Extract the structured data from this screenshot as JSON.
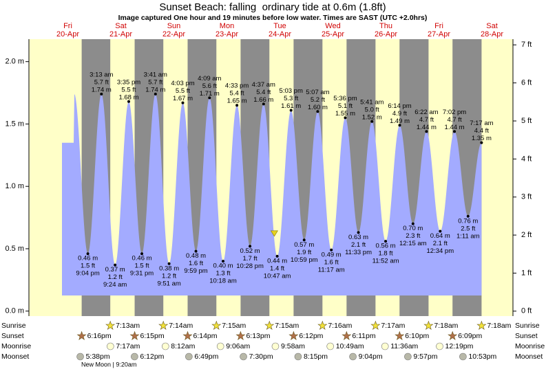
{
  "chart_data": {
    "type": "tide",
    "title": "Sunset Beach: falling  ordinary tide at 0.6m (1.8ft)",
    "subtitle": "Image captured One hour and 19 minutes before low water. Times are SAST (UTC +2.0hrs)",
    "ylim": [
      -0.04,
      2.18
    ],
    "yticks": [
      {
        "value": 0,
        "label": "0.0 m"
      },
      {
        "value": 0.5,
        "label": "0.5 m"
      },
      {
        "value": 1,
        "label": "1.0 m"
      },
      {
        "value": 1.5,
        "label": "1.5 m"
      },
      {
        "value": 2,
        "label": "2.0 m"
      }
    ],
    "y2lim": [
      -0.13,
      7.15
    ],
    "y2ticks": [
      {
        "value": 0,
        "label": "0 ft"
      },
      {
        "value": 1,
        "label": "1 ft"
      },
      {
        "value": 2,
        "label": "2 ft"
      },
      {
        "value": 3,
        "label": "3 ft"
      },
      {
        "value": 4,
        "label": "4 ft"
      },
      {
        "value": 5,
        "label": "5 ft"
      },
      {
        "value": 6,
        "label": "6 ft"
      },
      {
        "value": 7,
        "label": "7 ft"
      }
    ],
    "color": "#a3abff",
    "day_color": "#ffffc8",
    "night_color": "#8c8c8c",
    "row_labels": {
      "sunrise": "Sunrise",
      "sunset": "Sunset",
      "moonrise": "Moonrise",
      "moonset": "Moonset"
    },
    "moon_phase": "New Moon | 9:20am",
    "days": [
      {
        "weekday": "Fri",
        "date": "20-Apr",
        "sunrise": null,
        "sunset": "6:16pm",
        "moonrise": null,
        "moonset": "5:38pm",
        "tides": {
          "times": [
            "9:04 pm"
          ],
          "values": [
            0.46
          ],
          "value_labels": [
            "0.46 m"
          ],
          "ft_labels": [
            "1.5 ft"
          ]
        }
      },
      {
        "weekday": "Sat",
        "date": "21-Apr",
        "sunrise": "7:13am",
        "sunset": "6:15pm",
        "moonrise": "7:17am",
        "moonset": "6:12pm",
        "tides": {
          "times": [
            "3:13 am",
            "9:24 am",
            "3:35 pm",
            "9:31 pm"
          ],
          "values": [
            1.74,
            0.37,
            1.68,
            0.46
          ],
          "value_labels": [
            "1.74 m",
            "0.37 m",
            "1.68 m",
            "0.46 m"
          ],
          "ft_labels": [
            "5.7 ft",
            "1.2 ft",
            "5.5 ft",
            "1.5 ft"
          ]
        }
      },
      {
        "weekday": "Sun",
        "date": "22-Apr",
        "sunrise": "7:14am",
        "sunset": "6:14pm",
        "moonrise": "8:12am",
        "moonset": "6:49pm",
        "tides": {
          "times": [
            "3:41 am",
            "9:51 am",
            "4:03 pm",
            "9:59 pm"
          ],
          "values": [
            1.74,
            0.38,
            1.67,
            0.48
          ],
          "value_labels": [
            "1.74 m",
            "0.38 m",
            "1.67 m",
            "0.48 m"
          ],
          "ft_labels": [
            "5.7 ft",
            "1.2 ft",
            "5.5 ft",
            "1.6 ft"
          ]
        }
      },
      {
        "weekday": "Mon",
        "date": "23-Apr",
        "sunrise": "7:15am",
        "sunset": "6:13pm",
        "moonrise": "9:06am",
        "moonset": "7:30pm",
        "tides": {
          "times": [
            "4:09 am",
            "10:18 am",
            "4:33 pm",
            "10:28 pm"
          ],
          "values": [
            1.71,
            0.4,
            1.65,
            0.52
          ],
          "value_labels": [
            "1.71 m",
            "0.40 m",
            "1.65 m",
            "0.52 m"
          ],
          "ft_labels": [
            "5.6 ft",
            "1.3 ft",
            "5.4 ft",
            "1.7 ft"
          ]
        }
      },
      {
        "weekday": "Tue",
        "date": "24-Apr",
        "sunrise": "7:15am",
        "sunset": "6:12pm",
        "moonrise": "9:58am",
        "moonset": "8:15pm",
        "marker": {
          "hour": 9.47,
          "value": 0.6
        },
        "tides": {
          "times": [
            "4:37 am",
            "10:47 am",
            "5:03 pm",
            "10:59 pm"
          ],
          "values": [
            1.66,
            0.44,
            1.61,
            0.57
          ],
          "value_labels": [
            "1.66 m",
            "0.44 m",
            "1.61 m",
            "0.57 m"
          ],
          "ft_labels": [
            "5.4 ft",
            "1.4 ft",
            "5.3 ft",
            "1.9 ft"
          ]
        }
      },
      {
        "weekday": "Wed",
        "date": "25-Apr",
        "sunrise": "7:16am",
        "sunset": "6:11pm",
        "moonrise": "10:49am",
        "moonset": "9:04pm",
        "tides": {
          "times": [
            "5:07 am",
            "11:17 am",
            "5:36 pm",
            "11:33 pm"
          ],
          "values": [
            1.6,
            0.49,
            1.55,
            0.63
          ],
          "value_labels": [
            "1.60 m",
            "0.49 m",
            "1.55 m",
            "0.63 m"
          ],
          "ft_labels": [
            "5.2 ft",
            "1.6 ft",
            "5.1 ft",
            "2.1 ft"
          ]
        }
      },
      {
        "weekday": "Thu",
        "date": "26-Apr",
        "sunrise": "7:17am",
        "sunset": "6:10pm",
        "moonrise": "11:36am",
        "moonset": "9:57pm",
        "tides": {
          "times": [
            "5:41 am",
            "11:52 am",
            "6:14 pm"
          ],
          "values": [
            1.52,
            0.56,
            1.49
          ],
          "value_labels": [
            "1.52 m",
            "0.56 m",
            "1.49 m"
          ],
          "ft_labels": [
            "5.0 ft",
            "1.8 ft",
            "4.9 ft"
          ]
        }
      },
      {
        "weekday": "Fri",
        "date": "27-Apr",
        "sunrise": "7:18am",
        "sunset": "6:09pm",
        "moonrise": "12:19pm",
        "moonset": "10:53pm",
        "tides": {
          "times": [
            "12:15 am",
            "6:22 am",
            "12:34 pm",
            "7:02 pm"
          ],
          "values": [
            0.7,
            1.44,
            0.64,
            1.44
          ],
          "value_labels": [
            "0.70 m",
            "1.44 m",
            "0.64 m",
            "1.44 m"
          ],
          "ft_labels": [
            "2.3 ft",
            "4.7 ft",
            "2.1 ft",
            "4.7 ft"
          ]
        }
      },
      {
        "weekday": "Sat",
        "date": "28-Apr",
        "sunrise": "7:18am",
        "sunset": null,
        "moonrise": null,
        "moonset": null,
        "tides": {
          "times": [
            "1:11 am",
            "7:17 am"
          ],
          "values": [
            0.76,
            1.35
          ],
          "value_labels": [
            "0.76 m",
            "1.35 m"
          ],
          "ft_labels": [
            "2.5 ft",
            "4.4 ft"
          ]
        }
      }
    ]
  }
}
